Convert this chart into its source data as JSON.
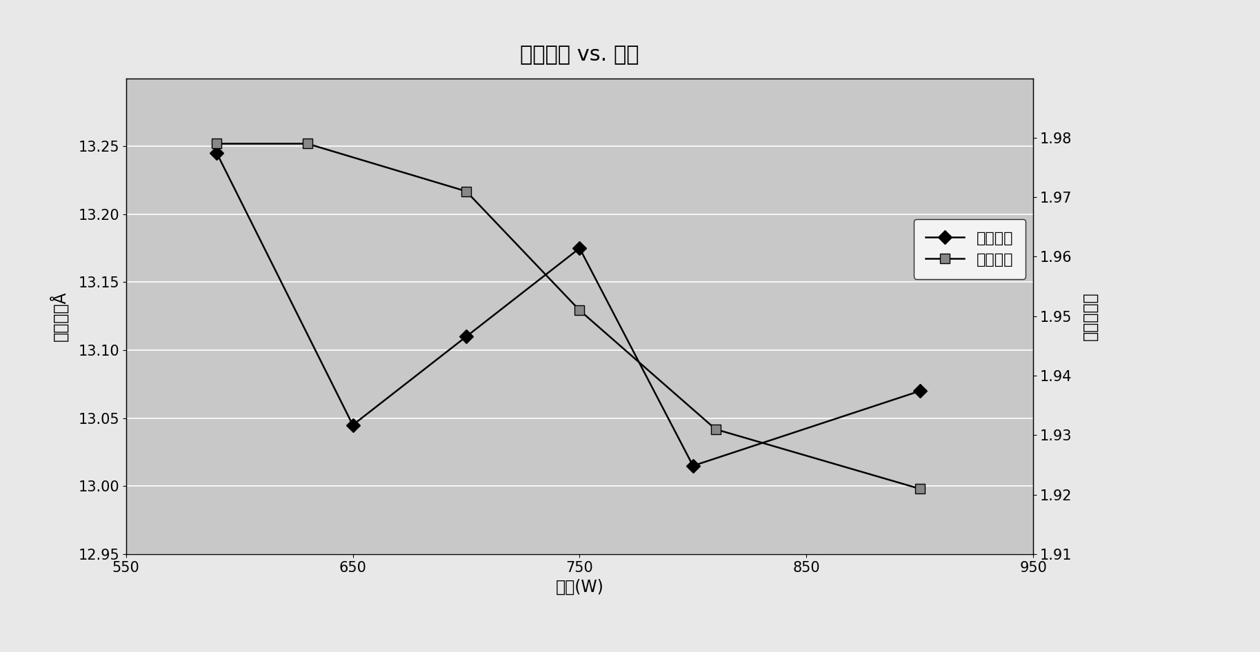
{
  "title": "电性厅度 vs. 功率",
  "xlabel": "功率(W)",
  "ylabel_left": "电性厅度Å",
  "ylabel_right": "击穿电压伏",
  "xlim": [
    550,
    950
  ],
  "ylim_left": [
    12.95,
    13.3
  ],
  "ylim_right": [
    1.91,
    1.99
  ],
  "yticks_left": [
    12.95,
    13.0,
    13.05,
    13.1,
    13.15,
    13.2,
    13.25
  ],
  "yticks_right": [
    1.91,
    1.92,
    1.93,
    1.94,
    1.95,
    1.96,
    1.97,
    1.98
  ],
  "xticks": [
    550,
    650,
    750,
    850,
    950
  ],
  "series1_name": "电性厅度",
  "series2_name": "击穿电压",
  "series1_x": [
    590,
    650,
    700,
    750,
    800,
    900
  ],
  "series1_y": [
    13.245,
    13.045,
    13.11,
    13.175,
    13.015,
    13.07
  ],
  "series2_x": [
    590,
    630,
    700,
    750,
    810,
    900
  ],
  "series2_y": [
    1.979,
    1.979,
    1.971,
    1.951,
    1.931,
    1.921
  ],
  "line_color": "#000000",
  "marker1": "D",
  "marker2": "s",
  "bg_color": "#c8c8c8",
  "fig_bg_color": "#e8e8e8",
  "title_fontsize": 22,
  "axis_fontsize": 17,
  "tick_fontsize": 15,
  "legend_fontsize": 16
}
